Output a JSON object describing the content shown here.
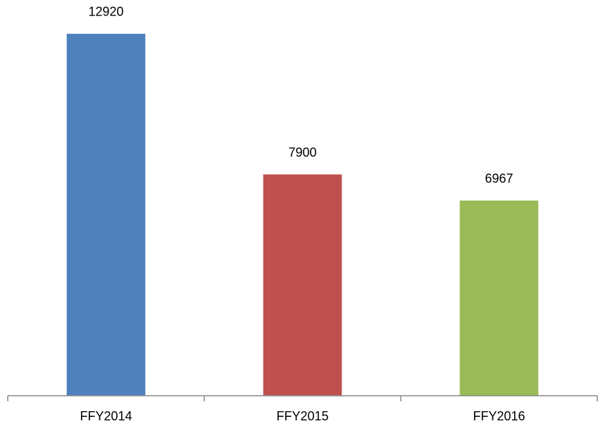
{
  "chart_data": {
    "type": "bar",
    "categories": [
      "FFY2014",
      "FFY2015",
      "FFY2016"
    ],
    "values": [
      12920,
      7900,
      6967
    ],
    "colors": [
      "#4f81bd",
      "#c0504d",
      "#9bbb59"
    ],
    "ylim": [
      0,
      14000
    ]
  }
}
